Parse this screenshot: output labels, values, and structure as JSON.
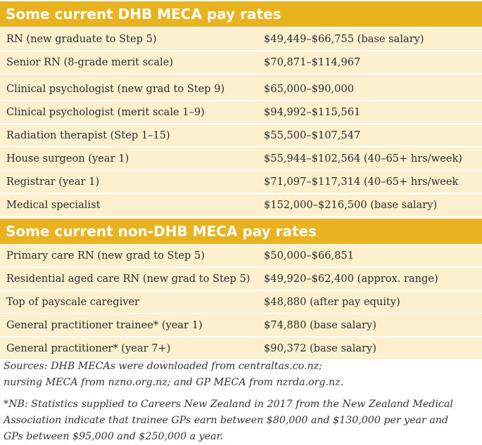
{
  "sections": [
    {
      "title": "Some current DHB MECA pay rates",
      "rows": [
        {
          "role": "RN (new graduate to Step 5)",
          "rate": "$49,449–$66,755 (base salary)"
        },
        {
          "role": "Senior RN (8-grade merit scale)",
          "rate": "$70,871–$114,967"
        },
        {
          "role": "Clinical psychologist (new grad to Step 9)",
          "rate": "$65,000–$90,000"
        },
        {
          "role": "Clinical psychologist (merit scale 1–9)",
          "rate": "$94,992–$115,561"
        },
        {
          "role": "Radiation therapist (Step 1–15)",
          "rate": "$55,500–$107,547"
        },
        {
          "role": "House surgeon (year 1)",
          "rate": "$55,944–$102,564  (40–65+ hrs/week)"
        },
        {
          "role": "Registrar (year 1)",
          "rate": "$71,097–$117,314  (40–65+ hrs/week"
        },
        {
          "role": "Medical specialist",
          "rate": "$152,000–$216,500 (base salary)"
        }
      ]
    },
    {
      "title": "Some current non-DHB MECA pay rates",
      "rows": [
        {
          "role": "Primary care RN (new grad to Step 5)",
          "rate": "$50,000–$66,851"
        },
        {
          "role": "Residential aged care RN (new grad to Step 5)",
          "rate": "$49,920–$62,400 (approx. range)"
        },
        {
          "role": "Top of payscale caregiver",
          "rate": "$48,880 (after pay equity)"
        },
        {
          "role": "General practitioner trainee* (year 1)",
          "rate": "$74,880 (base salary)"
        },
        {
          "role": "General practitioner* (year 7+)",
          "rate": "$90,372 (base salary)"
        }
      ]
    }
  ],
  "sources": {
    "line1": "Sources: DHB MECAs were downloaded from centraltas.co.nz;",
    "line2": "nursing MECA from nzno.org.nz; and GP MECA from nzrda.org.nz."
  },
  "footnote": {
    "line1": "*NB: Statistics supplied to Careers New Zealand in 2017 from the New Zealand Medical",
    "line2": "Association indicate that trainee GPs earn between $80,000 and $130,000 per year and",
    "line3": "GPs between $95,000 and $250,000 a year."
  },
  "colors": {
    "header_bg": "#e9b21f",
    "row_bg": "#fcf0cf",
    "header_text": "#ffffff"
  }
}
